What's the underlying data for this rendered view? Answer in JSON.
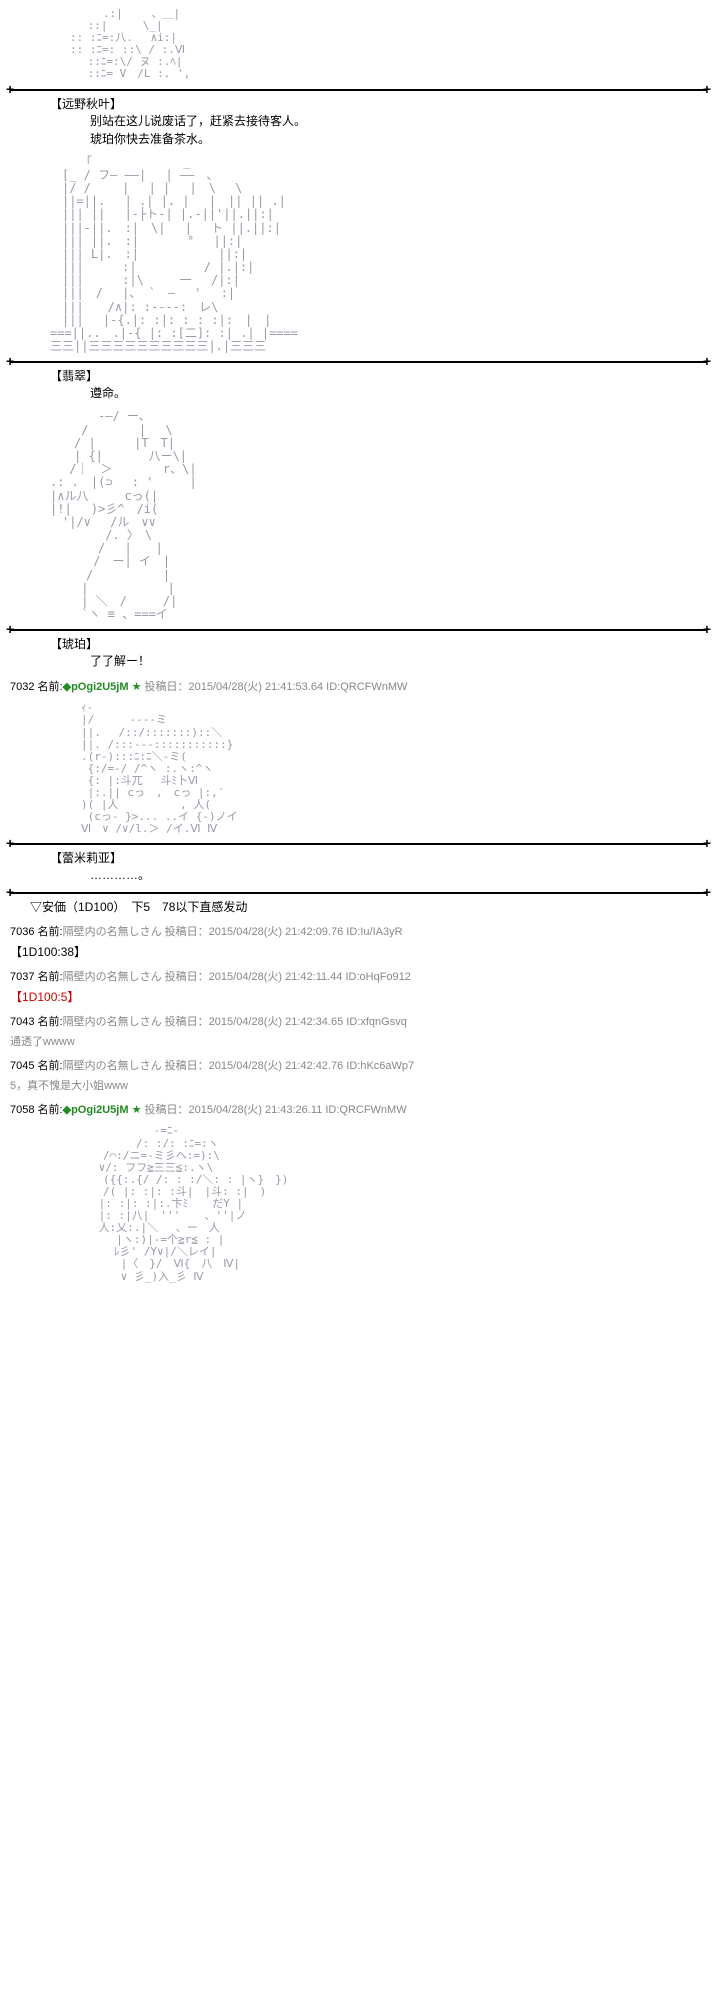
{
  "posts": [
    {
      "char_name": "【远野秋叶】",
      "line1": "别站在这儿说废话了，赶紧去接待客人。",
      "line2": "琥珀你快去准备茶水。"
    },
    {
      "char_name": "【翡翠】",
      "line1": "遵命。"
    },
    {
      "char_name": "【琥珀】",
      "line1": "了了解ー！"
    },
    {
      "num": "7032",
      "name_prefix": "名前:",
      "trip": "◆pOgi2U5jM",
      "star": "★",
      "date_label": "投稿日：",
      "date": "2015/04/28(火) 21:41:53.64",
      "id_label": "ID:",
      "id": "QRCFWnMW",
      "char_name": "【蕾米莉亚】",
      "line1": "…………。",
      "anka": "▽安価（1D100）　下5　78以下直感发动"
    },
    {
      "num": "7036",
      "name_prefix": "名前:",
      "name": "隔壁内の名無しさん",
      "date_label": "投稿日：",
      "date": "2015/04/28(火) 21:42:09.76",
      "id_label": "ID:",
      "id": "Iu/IA3yR",
      "dice": "【1D100:38】"
    },
    {
      "num": "7037",
      "name_prefix": "名前:",
      "name": "隔壁内の名無しさん",
      "date_label": "投稿日：",
      "date": "2015/04/28(火) 21:42:11.44",
      "id_label": "ID:",
      "id": "oHqFo912",
      "dice": "【1D100:5】"
    },
    {
      "num": "7043",
      "name_prefix": "名前:",
      "name": "隔壁内の名無しさん",
      "date_label": "投稿日：",
      "date": "2015/04/28(火) 21:42:34.65",
      "id_label": "ID:",
      "id": "xfqnGsvq",
      "comment": "通透了wwww"
    },
    {
      "num": "7045",
      "name_prefix": "名前:",
      "name": "隔壁内の名無しさん",
      "date_label": "投稿日：",
      "date": "2015/04/28(火) 21:42:42.76",
      "id_label": "ID:",
      "id": "hKc6aWp7",
      "comment": "5，真不愧是大小姐www"
    },
    {
      "num": "7058",
      "name_prefix": "名前:",
      "trip": "◆pOgi2U5jM",
      "star": "★",
      "date_label": "投稿日：",
      "date": "2015/04/28(火) 21:43:26.11",
      "id_label": "ID:",
      "id": "QRCFWnMW"
    }
  ],
  "ascii": {
    "art1": "　　　.:|　　 、＿|\n　 ::| 　 　\\_|\n:: :ﾆ=:八. 　∧i:|\n:: :ﾆ=: ::\\ / :.Ⅵ\n　 ::ﾆ=:\\/ ヌ :.ﾍ|\n　 ::ﾆ= V　/L :. ',\n",
    "art2": "　　　「　　　　　　　 _\n　[_ / フ― ――|　 | ――　、\n　|/ /　 　|　 | |　 |　\\　 \\\n　||=||.　 | .| |. |　 |　|| || .|\n　||| ||　 |-├ト-| |.-||'||.||:|\n　|||-||.　:|　\\|　 |　 ト ||.||:|\n　||| ||.　:|　　　　°　 ||:|\n　||| L|.　:|　　　　　　 ||:|\n　|||　 　 :|　　　　　 / |.|:|\n　||| 　　 :|\\　　　一　 /|:|\n　|||　/ 　|、 `　―　 '　 :|\n　|||　　/∧|: :----:　レ\\\n　|||　 |-{.|: :|: : : :|:　|　|\n===||..　.|-{ |: :[二]: :| .| |====\n三三||三三三三三三三三三三|.|三三三\n",
    "art3": "　　　　-―/ ー、\n　　 / 　　　 |　 \\\n　　/ | 　　 |T　T|\n　　| {| 　 　 八ー\\|\n　 /｜　＞　　 　 r、\\|\n.: .　|(⊃　 : '　　　|\n|∧ル八　　　cっ(|\n|!|　 )>彡^　/i(\n　'|/∨ 　/ル　∨∨\n　　　　 /. 〉　\\\n　　　　/　 |　　|\n　　　 /　ー| イ　|\n　　　/　　 　 　 |\n　　 |　　　　　　 |\n　　 | ＼　/　　　/|\n　　 `ヽ ≡ 、===イ\n",
    "art4": "　ｨ-\n　|/ 　 　----ミ\n　||.　 /::/:::::::)::＼\n　||. /:::---:::::::::::}\n　.(r-):::ﾆ:ﾆ＼-ミ(\n　 {:/=-/ /^ヽ :.ヽ:^ヽ\n　 {: |:斗兀 　斗ﾐ卜Ⅵ\n　 |:.|| cっ　,　cっ |:,′\n　)( |人　　　　　 , 人(\n 　(cっ- }>... ..イ {-)ノイ\n　Ⅵ　∨ /∨/l.＞ /イ.Ⅵ Ⅳ\n",
    "art5": "　　　　　　　 -=ﾆ-\n　　　　　　/: :/: :ﾆ=:ヽ\n　　　/⌒:/ニ=-ミ彡ヘ:=):\\\n　　 ∨/: フフ≧三三≦:.ヽ\\\n　　　({{:.{/ /: : :/＼: : |ヽ}　})\n　　　/( |: :|: :斗|　|斗: :|　)\n　　 |: :|: :|:.卞ﾐ 　 だY |\n　　 |: :|八|　''' 　 、''|ノ\n　　 人:乂:.|＼　 、ー　人\n　 　 　|ヽ:)|-=个≧r≦ : |\n　　　　ﾚ彡' /Y∨|/＼レイ|\n　　　　 |〈　}/　Ⅵ{　八　Ⅳ|\n　　　　 ∨ 彡_)入_彡 Ⅳ\n"
  }
}
